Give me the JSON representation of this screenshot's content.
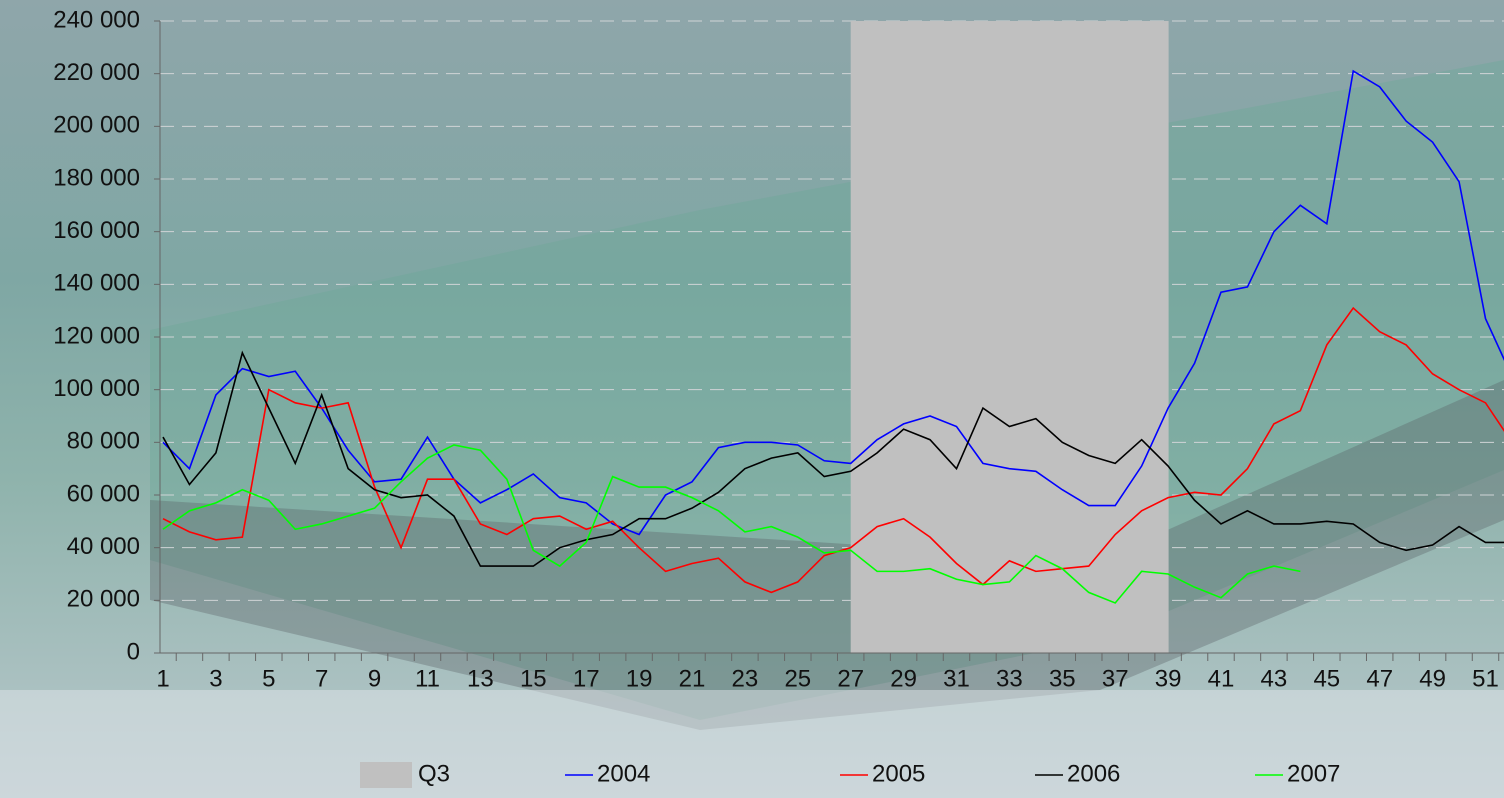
{
  "chart_data": {
    "type": "line",
    "categories": [
      1,
      null,
      3,
      null,
      5,
      null,
      7,
      null,
      9,
      null,
      11,
      null,
      13,
      null,
      15,
      null,
      17,
      null,
      19,
      null,
      21,
      null,
      23,
      null,
      25,
      null,
      27,
      null,
      29,
      null,
      31,
      null,
      33,
      null,
      35,
      null,
      37,
      null,
      39,
      null,
      41,
      null,
      43,
      null,
      45,
      null,
      47,
      null,
      49,
      null,
      51,
      null
    ],
    "band_series": {
      "name": "Q3",
      "color": "#c0c0c0",
      "values": [
        null,
        null,
        null,
        null,
        null,
        null,
        null,
        null,
        null,
        null,
        null,
        null,
        null,
        null,
        null,
        null,
        null,
        null,
        null,
        null,
        null,
        null,
        null,
        null,
        null,
        null,
        240000,
        240000,
        240000,
        240000,
        240000,
        240000,
        240000,
        240000,
        240000,
        240000,
        240000,
        240000,
        null,
        null,
        null,
        null,
        null,
        null,
        null,
        null,
        null,
        null,
        null,
        null,
        null,
        null
      ]
    },
    "series": [
      {
        "name": "2004",
        "color": "#0000ff",
        "values": [
          80000,
          70000,
          98000,
          108000,
          105000,
          107000,
          93000,
          77000,
          65000,
          66000,
          82000,
          66000,
          57000,
          62000,
          68000,
          59000,
          57000,
          49000,
          45000,
          60000,
          65000,
          78000,
          80000,
          80000,
          79000,
          73000,
          72000,
          81000,
          87000,
          90000,
          86000,
          72000,
          70000,
          69000,
          62000,
          56000,
          56000,
          71000,
          93000,
          110000,
          137000,
          139000,
          160000,
          170000,
          163000,
          221000,
          215000,
          202000,
          194000,
          179000,
          127000,
          105000
        ]
      },
      {
        "name": "2005",
        "color": "#ff0000",
        "values": [
          51000,
          46000,
          43000,
          44000,
          100000,
          95000,
          93000,
          95000,
          63000,
          40000,
          66000,
          66000,
          49000,
          45000,
          51000,
          52000,
          47000,
          50000,
          40000,
          31000,
          34000,
          36000,
          27000,
          23000,
          27000,
          37000,
          40000,
          48000,
          51000,
          44000,
          34000,
          26000,
          35000,
          31000,
          32000,
          33000,
          45000,
          54000,
          59000,
          61000,
          60000,
          70000,
          87000,
          92000,
          117000,
          131000,
          122000,
          117000,
          106000,
          100000,
          95000,
          80000
        ]
      },
      {
        "name": "2006",
        "color": "#000000",
        "values": [
          82000,
          64000,
          76000,
          114000,
          93000,
          72000,
          98000,
          70000,
          62000,
          59000,
          60000,
          52000,
          33000,
          33000,
          33000,
          40000,
          43000,
          45000,
          51000,
          51000,
          55000,
          61000,
          70000,
          74000,
          76000,
          67000,
          69000,
          76000,
          85000,
          81000,
          70000,
          93000,
          86000,
          89000,
          80000,
          75000,
          72000,
          81000,
          71000,
          58000,
          49000,
          54000,
          49000,
          49000,
          50000,
          49000,
          42000,
          39000,
          41000,
          48000,
          42000,
          42000
        ]
      },
      {
        "name": "2007",
        "color": "#00ff00",
        "values": [
          47000,
          54000,
          57000,
          62000,
          58000,
          47000,
          49000,
          52000,
          55000,
          65000,
          74000,
          79000,
          77000,
          66000,
          39000,
          33000,
          42000,
          67000,
          63000,
          63000,
          59000,
          54000,
          46000,
          48000,
          44000,
          38000,
          39000,
          31000,
          31000,
          32000,
          28000,
          26000,
          27000,
          37000,
          32000,
          23000,
          19000,
          31000,
          30000,
          25000,
          21000,
          30000,
          33000,
          31000,
          null,
          null,
          null,
          null,
          null,
          null,
          null,
          null
        ]
      }
    ],
    "ylim": [
      0,
      240000
    ],
    "yticks": [
      0,
      {
        "value": 20000,
        "label": "20 000"
      },
      {
        "value": 40000,
        "label": "40 000"
      },
      {
        "value": 60000,
        "label": "60 000"
      },
      {
        "value": 80000,
        "label": "80 000"
      },
      {
        "value": 100000,
        "label": "100 000"
      },
      {
        "value": 120000,
        "label": "120 000"
      },
      {
        "value": 140000,
        "label": "140 000"
      },
      {
        "value": 160000,
        "label": "160 000"
      },
      {
        "value": 180000,
        "label": "180 000"
      },
      {
        "value": 200000,
        "label": "200 000"
      },
      {
        "value": 220000,
        "label": "220 000"
      },
      {
        "value": 240000,
        "label": "240 000"
      }
    ],
    "grid": true
  }
}
